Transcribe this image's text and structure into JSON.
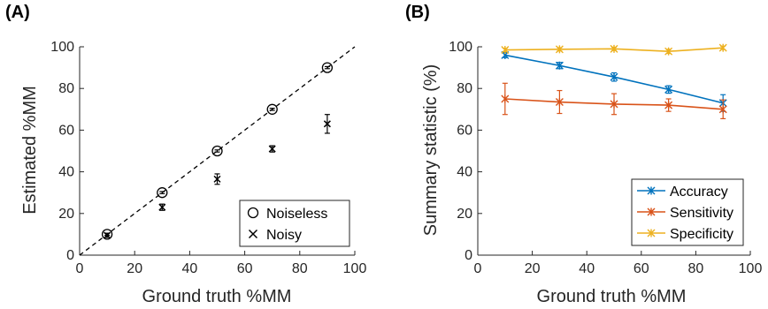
{
  "chart_data": [
    {
      "panel": "(A)",
      "type": "scatter",
      "xlabel": "Ground truth %MM",
      "ylabel": "Estimated %MM",
      "xlim": [
        0,
        100
      ],
      "ylim": [
        0,
        100
      ],
      "xticks": [
        0,
        20,
        40,
        60,
        80,
        100
      ],
      "yticks": [
        0,
        20,
        40,
        60,
        80,
        100
      ],
      "grid": false,
      "legend_position": "bottom-right",
      "reference_line": {
        "style": "dashed",
        "from": [
          0,
          0
        ],
        "to": [
          100,
          100
        ]
      },
      "series": [
        {
          "name": "Noiseless",
          "marker": "circle",
          "x": [
            10,
            30,
            50,
            70,
            90
          ],
          "y": [
            10,
            30,
            50,
            70,
            90
          ],
          "err": [
            0.5,
            0.5,
            0.5,
            0.5,
            0.5
          ]
        },
        {
          "name": "Noisy",
          "marker": "x",
          "x": [
            10,
            30,
            50,
            70,
            90
          ],
          "y": [
            9.5,
            23,
            36.5,
            51,
            63
          ],
          "err": [
            1,
            1.5,
            2.5,
            1.5,
            4.5
          ]
        }
      ]
    },
    {
      "panel": "(B)",
      "type": "line",
      "xlabel": "Ground truth %MM",
      "ylabel": "Summary statistic (%)",
      "xlim": [
        0,
        100
      ],
      "ylim": [
        0,
        100
      ],
      "xticks": [
        0,
        20,
        40,
        60,
        80,
        100
      ],
      "yticks": [
        0,
        20,
        40,
        60,
        80,
        100
      ],
      "grid": false,
      "legend_position": "bottom-right",
      "x": [
        10,
        30,
        50,
        70,
        90
      ],
      "series": [
        {
          "name": "Accuracy",
          "color": "#0072bd",
          "values": [
            96,
            91,
            85.5,
            79.5,
            73
          ],
          "err": [
            1.2,
            1.5,
            2,
            1.8,
            4
          ]
        },
        {
          "name": "Sensitivity",
          "color": "#d95319",
          "values": [
            75,
            73.5,
            72.5,
            72,
            70
          ],
          "err": [
            7.5,
            5.5,
            5,
            3,
            4.5
          ]
        },
        {
          "name": "Specificity",
          "color": "#edb120",
          "values": [
            98.5,
            98.8,
            99,
            97.8,
            99.5
          ],
          "err": [
            0.8,
            0.8,
            0.8,
            1,
            0.8
          ]
        }
      ]
    }
  ]
}
